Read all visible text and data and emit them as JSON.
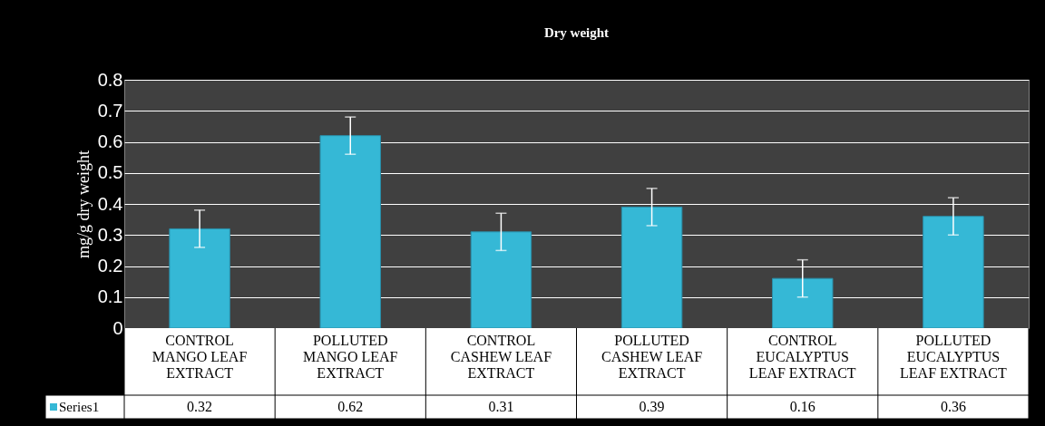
{
  "chart_data": {
    "type": "bar",
    "title": "Dry weight",
    "ylabel": "mg/g dry weight",
    "categories": [
      "CONTROL MANGO LEAF EXTRACT",
      "POLLUTED MANGO LEAF EXTRACT",
      "CONTROL CASHEW LEAF EXTRACT",
      "POLLUTED CASHEW LEAF EXTRACT",
      "CONTROL EUCALYPTUS LEAF EXTRACT",
      "POLLUTED EUCALYPTUS LEAF EXTRACT"
    ],
    "series": [
      {
        "name": "Series1",
        "color": "#35b8d6",
        "values": [
          0.32,
          0.62,
          0.31,
          0.39,
          0.16,
          0.36
        ],
        "errors": [
          0.06,
          0.06,
          0.06,
          0.06,
          0.06,
          0.06
        ]
      }
    ],
    "ylim": [
      0,
      0.8
    ],
    "yticks": [
      0,
      0.1,
      0.2,
      0.3,
      0.4,
      0.5,
      0.6,
      0.7,
      0.8
    ],
    "grid": "y",
    "data_labels": true
  }
}
